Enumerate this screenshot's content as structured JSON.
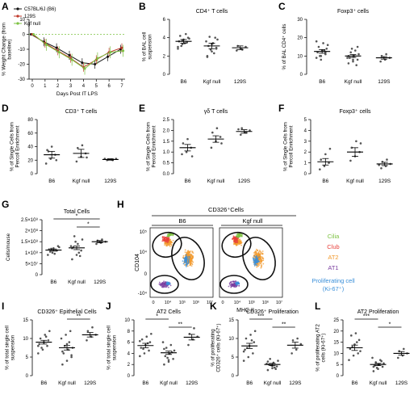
{
  "figure": {
    "flow_title": "CD326⁺Cells",
    "flow_groups": [
      "B6",
      "Kgf null"
    ],
    "flow_ylabel": "CD104",
    "flow_xlabel": "MHC II",
    "flow_ticks": [
      "0",
      "10⁴",
      "10⁵",
      "10⁶",
      "10⁷"
    ],
    "flow_yticks": [
      "10⁵",
      "10⁴",
      "0",
      "-10⁴"
    ],
    "flow_legend": [
      {
        "label": "Cilia",
        "color": "#7dc242"
      },
      {
        "label": "Club",
        "color": "#e8403b"
      },
      {
        "label": "AT2",
        "color": "#f29a2e"
      },
      {
        "label": "AT1",
        "color": "#7b3fa0"
      },
      {
        "label": "Proliferating cell",
        "color": "#3a8fd9"
      },
      {
        "label": "(Ki-67⁺)",
        "color": "#3a8fd9"
      }
    ]
  },
  "chart_data": [
    {
      "panel": "A",
      "type": "line",
      "title": "",
      "xlabel": "Days Post IT LPS",
      "ylabel": "% Weight Change (from baseline)",
      "x": [
        0,
        1,
        2,
        3,
        4,
        5,
        6,
        7
      ],
      "ylim": [
        -30,
        10
      ],
      "yticks": [
        "10",
        "0",
        "-10",
        "-20",
        "-30"
      ],
      "xticks": [
        "0",
        "1",
        "2",
        "3",
        "4",
        "5",
        "6",
        "7"
      ],
      "series": [
        {
          "name": "C57BL/6J (B6)",
          "color": "#111111",
          "values": [
            0,
            -5,
            -9,
            -14,
            -19,
            -20,
            -15,
            -10
          ],
          "err": [
            0,
            3,
            3,
            3,
            3,
            3,
            3,
            3
          ]
        },
        {
          "name": "129S",
          "color": "#c0392b",
          "values": [
            0,
            -6,
            -11,
            -16,
            -22,
            -17,
            -12,
            -9
          ],
          "err": [
            0,
            3,
            3,
            3,
            3,
            3,
            3,
            3
          ]
        },
        {
          "name": "Kgf null",
          "color": "#7dc242",
          "values": [
            0,
            -7,
            -12,
            -17,
            -23,
            -16,
            -12,
            -11
          ],
          "err": [
            0,
            4,
            4,
            4,
            4,
            4,
            4,
            4
          ]
        }
      ]
    },
    {
      "panel": "B",
      "type": "scatter",
      "title": "CD4⁺ T cells",
      "ylabel": "% of BAL cell suspension",
      "ylim": [
        0,
        6
      ],
      "yticks": [
        "6",
        "4",
        "2",
        "0"
      ],
      "categories": [
        "B6",
        "Kgf null",
        "129S"
      ],
      "groups": [
        {
          "mean": 3.6,
          "sem": 0.2,
          "points": [
            3.0,
            3.3,
            3.5,
            3.6,
            3.8,
            4.0,
            4.2,
            3.4,
            3.9,
            3.1,
            4.4,
            2.8,
            3.7,
            3.5
          ]
        },
        {
          "mean": 3.1,
          "sem": 0.3,
          "points": [
            2.0,
            2.5,
            2.9,
            3.1,
            3.4,
            3.8,
            4.1,
            2.3,
            3.6,
            2.7,
            4.0,
            1.9,
            3.3,
            2.8
          ]
        },
        {
          "mean": 2.9,
          "sem": 0.2,
          "points": [
            2.6,
            2.8,
            3.0,
            3.1,
            2.7
          ]
        }
      ]
    },
    {
      "panel": "C",
      "type": "scatter",
      "title": "Foxp3⁺ cells",
      "ylabel": "% of BAL CD4⁺ cells",
      "ylim": [
        0,
        30
      ],
      "yticks": [
        "30",
        "20",
        "10",
        "0"
      ],
      "categories": [
        "B6",
        "Kgf null",
        "129S"
      ],
      "groups": [
        {
          "mean": 12.5,
          "sem": 1.0,
          "points": [
            9,
            10,
            11,
            12,
            13,
            14,
            15,
            17,
            16,
            10,
            13,
            18,
            8,
            12
          ]
        },
        {
          "mean": 10.0,
          "sem": 0.8,
          "points": [
            6,
            7,
            8,
            9,
            10,
            11,
            12,
            13,
            9,
            14,
            5,
            10,
            8,
            15
          ]
        },
        {
          "mean": 9.0,
          "sem": 0.7,
          "points": [
            7,
            8,
            9,
            10,
            11
          ]
        }
      ]
    },
    {
      "panel": "D",
      "type": "scatter",
      "title": "CD3⁺ T cells",
      "ylabel": "% of Single Cells from Percoll Enrichment",
      "ylim": [
        0,
        80
      ],
      "yticks": [
        "80",
        "60",
        "40",
        "20",
        "0"
      ],
      "categories": [
        "B6",
        "Kgf null",
        "129S"
      ],
      "groups": [
        {
          "mean": 28,
          "sem": 5,
          "points": [
            15,
            22,
            28,
            35,
            40,
            20,
            33
          ]
        },
        {
          "mean": 30,
          "sem": 6,
          "points": [
            18,
            25,
            30,
            38,
            42,
            24
          ]
        },
        {
          "mean": 21,
          "sem": 1,
          "points": [
            20,
            21,
            22,
            21,
            20,
            22
          ]
        }
      ]
    },
    {
      "panel": "E",
      "type": "scatter",
      "title": "γδ T cells",
      "ylabel": "% of Single Cells from Percoll Enrichment",
      "ylim": [
        0.0,
        2.5
      ],
      "yticks": [
        "2.5",
        "2.0",
        "1.5",
        "1.0",
        "0.5",
        "0.0"
      ],
      "categories": [
        "B6",
        "Kgf null",
        "129S"
      ],
      "groups": [
        {
          "mean": 1.2,
          "sem": 0.15,
          "points": [
            0.9,
            1.0,
            1.2,
            1.4,
            1.6,
            0.8
          ]
        },
        {
          "mean": 1.6,
          "sem": 0.15,
          "points": [
            1.2,
            1.5,
            1.7,
            1.9,
            2.1,
            1.4
          ]
        },
        {
          "mean": 1.95,
          "sem": 0.08,
          "points": [
            1.8,
            1.9,
            2.0,
            2.1,
            1.9,
            2.05
          ]
        }
      ]
    },
    {
      "panel": "F",
      "type": "scatter",
      "title": "Foxp3⁺ cells",
      "ylabel": "% of Single Cells from Percoll Enrichment",
      "ylim": [
        0,
        5
      ],
      "yticks": [
        "5",
        "4",
        "3",
        "2",
        "1",
        "0"
      ],
      "categories": [
        "B6",
        "Kgf null",
        "129S"
      ],
      "groups": [
        {
          "mean": 1.1,
          "sem": 0.3,
          "points": [
            0.4,
            0.7,
            1.0,
            1.3,
            1.8,
            2.3
          ]
        },
        {
          "mean": 2.0,
          "sem": 0.4,
          "points": [
            1.2,
            1.6,
            2.0,
            2.4,
            3.0,
            2.8
          ]
        },
        {
          "mean": 0.9,
          "sem": 0.15,
          "points": [
            0.5,
            0.7,
            0.9,
            1.1,
            1.3,
            0.8
          ]
        }
      ]
    },
    {
      "panel": "G",
      "type": "scatter",
      "title": "Total Cells",
      "ylabel": "Cells/mouse",
      "ylim": [
        0,
        250000000
      ],
      "yticks": [
        "2.5×10⁸",
        "2×10⁸",
        "1.5×10⁸",
        "1×10⁸",
        "5×10⁷",
        "0"
      ],
      "categories": [
        "B6",
        "Kgf null",
        "129S"
      ],
      "groups": [
        {
          "mean": 112000000,
          "sem": 5000000,
          "points": [
            90000000,
            100000000,
            110000000,
            115000000,
            120000000,
            130000000,
            105000000,
            95000000,
            125000000,
            118000000
          ]
        },
        {
          "mean": 122000000,
          "sem": 8000000,
          "points": [
            70000000,
            90000000,
            110000000,
            125000000,
            140000000,
            160000000,
            175000000,
            100000000,
            130000000,
            150000000,
            85000000,
            120000000
          ]
        },
        {
          "mean": 150000000,
          "sem": 5000000,
          "points": [
            140000000,
            145000000,
            150000000,
            155000000,
            160000000
          ]
        }
      ],
      "significance": [
        {
          "from": 0,
          "to": 2,
          "label": "*"
        },
        {
          "from": 1,
          "to": 2,
          "label": "*"
        }
      ]
    },
    {
      "panel": "I",
      "type": "scatter",
      "title": "CD326⁺ Epithelial Cells",
      "ylabel": "% of total single cell suspension",
      "ylim": [
        0,
        15
      ],
      "yticks": [
        "15",
        "10",
        "5",
        "0"
      ],
      "categories": [
        "B6",
        "Kgf null",
        "129S"
      ],
      "groups": [
        {
          "mean": 9.0,
          "sem": 0.5,
          "points": [
            6,
            7,
            8,
            8.5,
            9,
            9.5,
            10,
            11,
            12,
            7.5,
            10.5,
            8
          ]
        },
        {
          "mean": 7.5,
          "sem": 0.6,
          "points": [
            3,
            4,
            5,
            6,
            7,
            7.5,
            8,
            9,
            10,
            11,
            12,
            6.5,
            8.5,
            5.5
          ]
        },
        {
          "mean": 11.0,
          "sem": 0.6,
          "points": [
            9.5,
            10.5,
            11,
            12,
            13
          ]
        }
      ],
      "significance": [
        {
          "from": 1,
          "to": 2,
          "label": "**"
        }
      ]
    },
    {
      "panel": "J",
      "type": "scatter",
      "title": "AT2 Cells",
      "ylabel": "% of total single cell suspension",
      "ylim": [
        0,
        10
      ],
      "yticks": [
        "10",
        "8",
        "6",
        "4",
        "2",
        "0"
      ],
      "categories": [
        "B6",
        "Kgf null",
        "129S"
      ],
      "groups": [
        {
          "mean": 5.4,
          "sem": 0.4,
          "points": [
            3.5,
            4.0,
            4.5,
            5.0,
            5.5,
            6.0,
            6.5,
            7.0,
            7.5,
            4.8,
            5.8,
            6.2
          ]
        },
        {
          "mean": 4.1,
          "sem": 0.3,
          "points": [
            2.0,
            2.5,
            3.0,
            3.5,
            4.0,
            4.5,
            5.0,
            5.5,
            6.0,
            3.2,
            4.2,
            4.8,
            2.8
          ]
        },
        {
          "mean": 6.9,
          "sem": 0.5,
          "points": [
            5.5,
            6.5,
            7.0,
            7.5,
            8.5
          ]
        }
      ],
      "significance": [
        {
          "from": 0,
          "to": 1,
          "label": "*"
        },
        {
          "from": 1,
          "to": 2,
          "label": "**"
        }
      ]
    },
    {
      "panel": "K",
      "type": "scatter",
      "title": "CD326⁺ Proliferation",
      "ylabel": "% of proliferating CD326⁺ cells (Ki-67⁺)",
      "ylim": [
        0,
        15
      ],
      "yticks": [
        "15",
        "10",
        "5",
        "0"
      ],
      "categories": [
        "B6",
        "Kgf null",
        "129S"
      ],
      "groups": [
        {
          "mean": 8.0,
          "sem": 0.7,
          "points": [
            4,
            5,
            6,
            7,
            8,
            9,
            10,
            11,
            12,
            7.5,
            9.5,
            6.5
          ]
        },
        {
          "mean": 3.0,
          "sem": 0.3,
          "points": [
            1.5,
            2,
            2.5,
            3,
            3.5,
            4,
            4.5,
            2.2,
            3.2,
            2.8,
            1.8,
            3.8,
            2.6
          ]
        },
        {
          "mean": 8.2,
          "sem": 0.8,
          "points": [
            6,
            7,
            8.5,
            9.5,
            10
          ]
        }
      ],
      "significance": [
        {
          "from": 0,
          "to": 1,
          "label": "***"
        },
        {
          "from": 1,
          "to": 2,
          "label": "**"
        }
      ]
    },
    {
      "panel": "L",
      "type": "scatter",
      "title": "AT2 Proliferation",
      "ylabel": "% of proliferating AT2 cells (Ki-67⁺)",
      "ylim": [
        0,
        25
      ],
      "yticks": [
        "25",
        "20",
        "15",
        "10",
        "5",
        "0"
      ],
      "categories": [
        "B6",
        "Kgf null",
        "129S"
      ],
      "groups": [
        {
          "mean": 12.5,
          "sem": 1.2,
          "points": [
            7,
            9,
            10,
            12,
            14,
            16,
            18,
            19,
            11,
            13,
            15
          ]
        },
        {
          "mean": 5.0,
          "sem": 0.5,
          "points": [
            2,
            3,
            4,
            4.5,
            5,
            5.5,
            6,
            7,
            8,
            3.5,
            6.5,
            4
          ]
        },
        {
          "mean": 10.0,
          "sem": 0.8,
          "points": [
            8,
            9,
            10,
            11,
            12
          ]
        }
      ],
      "significance": [
        {
          "from": 0,
          "to": 1,
          "label": "***"
        },
        {
          "from": 1,
          "to": 2,
          "label": "*"
        }
      ]
    }
  ]
}
